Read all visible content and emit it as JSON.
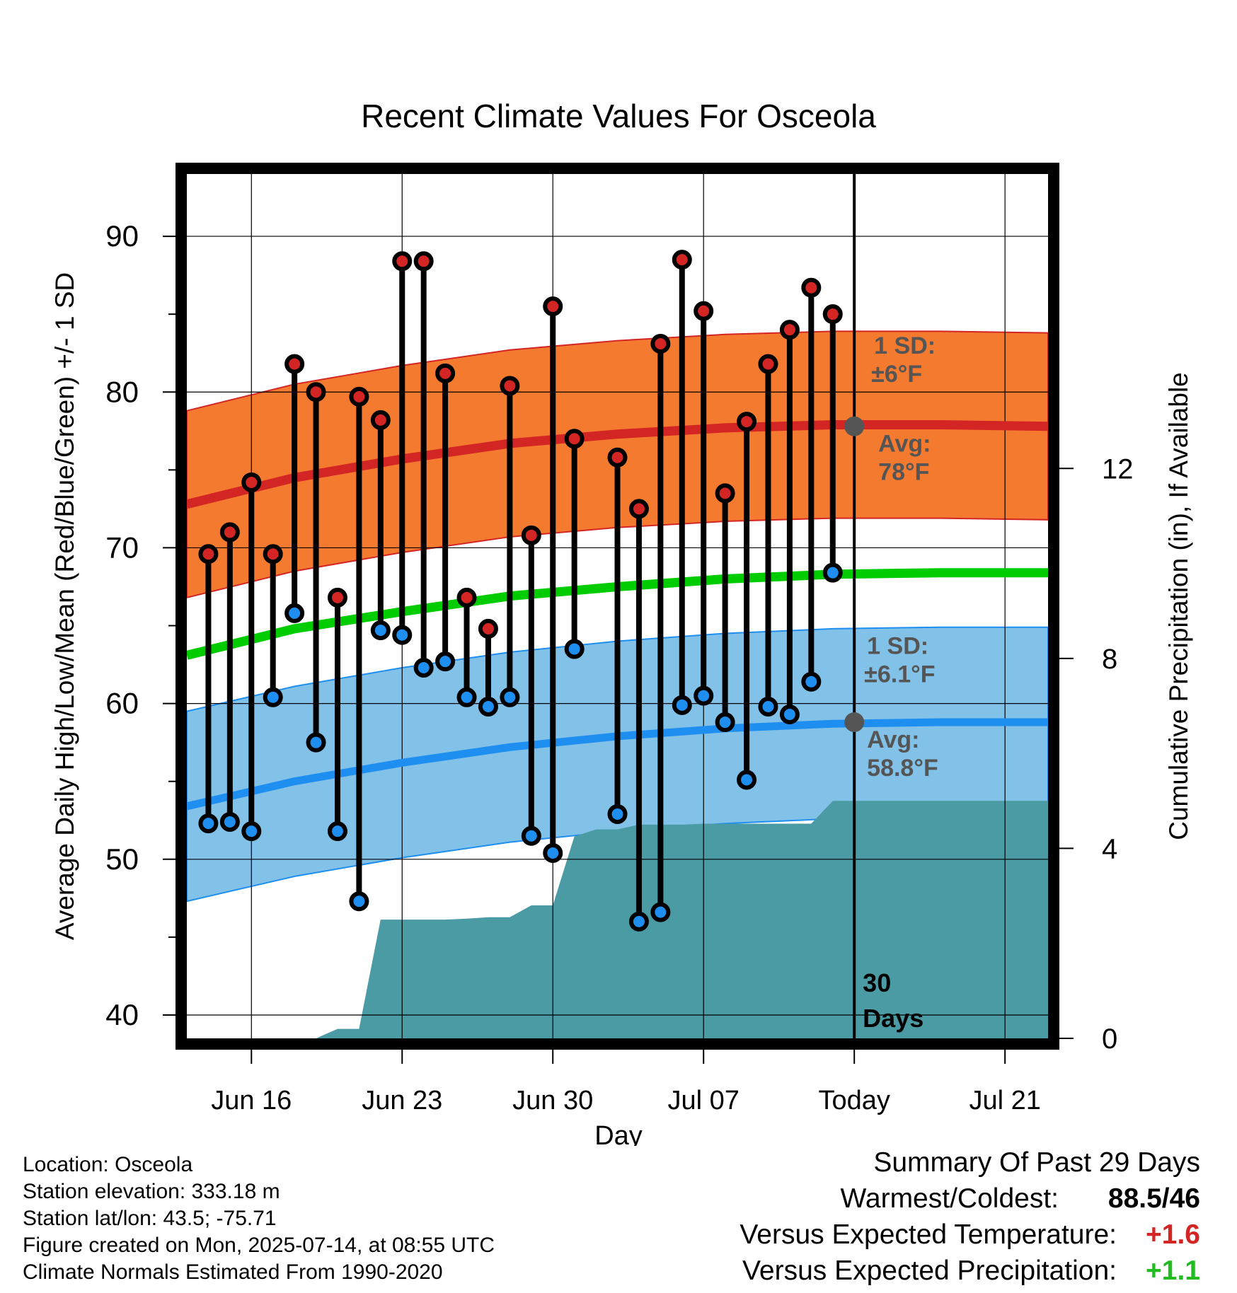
{
  "chart_data": {
    "type": "line",
    "title": "Recent Climate Values For Osceola",
    "xlabel": "Day",
    "ylabel": "Average Daily High/Low/Mean (Red/Blue/Green) +/- 1 SD",
    "y2label": "Cumulative Precipitation (in), If Available",
    "ylim": [
      38.5,
      94
    ],
    "y2lim": [
      0,
      18.2
    ],
    "xlim": [
      "2025-06-13",
      "2025-07-23"
    ],
    "x_ticks": [
      "Jun 16",
      "Jun 23",
      "Jun 30",
      "Jul 07",
      "Today",
      "Jul 21"
    ],
    "x_tick_dates": [
      "2025-06-16",
      "2025-06-23",
      "2025-06-30",
      "2025-07-07",
      "2025-07-14",
      "2025-07-21"
    ],
    "y_ticks": [
      40,
      50,
      60,
      70,
      80,
      90
    ],
    "y2_ticks": [
      0,
      4,
      8,
      12
    ],
    "grid": true,
    "today": "2025-07-14",
    "today_label": "30\nDays",
    "dates": [
      "2025-06-14",
      "2025-06-15",
      "2025-06-16",
      "2025-06-17",
      "2025-06-18",
      "2025-06-19",
      "2025-06-20",
      "2025-06-21",
      "2025-06-22",
      "2025-06-23",
      "2025-06-24",
      "2025-06-25",
      "2025-06-26",
      "2025-06-27",
      "2025-06-28",
      "2025-06-29",
      "2025-06-30",
      "2025-07-01",
      "2025-07-02",
      "2025-07-03",
      "2025-07-04",
      "2025-07-05",
      "2025-07-06",
      "2025-07-07",
      "2025-07-08",
      "2025-07-09",
      "2025-07-10",
      "2025-07-11",
      "2025-07-12",
      "2025-07-13"
    ],
    "highs": [
      69.6,
      71.0,
      74.2,
      69.6,
      81.8,
      80.0,
      66.8,
      79.7,
      78.2,
      88.4,
      88.4,
      81.2,
      66.8,
      64.8,
      80.4,
      70.8,
      85.5,
      77.0,
      null,
      75.8,
      72.5,
      83.1,
      88.5,
      85.2,
      73.5,
      78.1,
      81.8,
      84.0,
      86.7,
      85.0
    ],
    "lows": [
      52.3,
      52.4,
      51.8,
      60.4,
      65.8,
      57.5,
      51.8,
      47.3,
      64.7,
      64.4,
      62.3,
      62.7,
      60.4,
      59.8,
      60.4,
      51.5,
      50.4,
      63.5,
      null,
      52.9,
      46.0,
      46.6,
      59.9,
      60.5,
      58.8,
      55.1,
      59.8,
      59.3,
      61.4,
      68.4
    ],
    "normal_dates": [
      "2025-06-13",
      "2025-06-18",
      "2025-06-23",
      "2025-06-28",
      "2025-07-03",
      "2025-07-08",
      "2025-07-13",
      "2025-07-18",
      "2025-07-23"
    ],
    "normal_high": [
      72.8,
      74.5,
      75.7,
      76.7,
      77.3,
      77.7,
      77.9,
      77.9,
      77.8
    ],
    "normal_low": [
      53.4,
      55.0,
      56.2,
      57.2,
      57.9,
      58.4,
      58.7,
      58.8,
      58.8
    ],
    "normal_mean": [
      63.1,
      64.8,
      65.9,
      66.9,
      67.5,
      68.0,
      68.3,
      68.4,
      68.4
    ],
    "high_sd": 6,
    "low_sd": 6.1,
    "precip_dates": [
      "2025-06-13",
      "2025-06-19",
      "2025-06-20",
      "2025-06-21",
      "2025-06-22",
      "2025-06-23",
      "2025-06-24",
      "2025-06-25",
      "2025-06-26",
      "2025-06-27",
      "2025-06-28",
      "2025-06-29",
      "2025-06-30",
      "2025-07-01",
      "2025-07-02",
      "2025-07-03",
      "2025-07-04",
      "2025-07-05",
      "2025-07-06",
      "2025-07-07",
      "2025-07-08",
      "2025-07-09",
      "2025-07-10",
      "2025-07-11",
      "2025-07-12",
      "2025-07-13",
      "2025-07-23"
    ],
    "precip_cum": [
      0,
      0,
      0.2,
      0.2,
      2.5,
      2.5,
      2.5,
      2.5,
      2.52,
      2.55,
      2.55,
      2.8,
      2.8,
      4.25,
      4.4,
      4.4,
      4.5,
      4.5,
      4.5,
      4.52,
      4.52,
      4.52,
      4.52,
      4.52,
      4.52,
      5.0,
      5.0
    ],
    "annotations": {
      "high_sd_label": "1 SD:",
      "high_sd_value": "±6°F",
      "high_avg_label": "Avg:",
      "high_avg_value": "78°F",
      "low_sd_label": "1 SD:",
      "low_sd_value": "±6.1°F",
      "low_avg_label": "Avg:",
      "low_avg_value": "58.8°F"
    },
    "colors": {
      "high_band": "#f47a2f",
      "high_line": "#d42525",
      "low_band": "#82c1e8",
      "low_line": "#1e8ff0",
      "mean_line": "#00cc00",
      "precip": "#4a9ba4",
      "annotation": "#555555"
    }
  },
  "footer": {
    "location": "Location: Osceola",
    "elevation": "Station elevation: 333.18 m",
    "latlon": "Station lat/lon: 43.5; -75.71",
    "created": "Figure created on Mon, 2025-07-14, at 08:55 UTC",
    "normals": "Climate Normals Estimated From 1990-2020"
  },
  "summary": {
    "title": "Summary Of Past 29 Days",
    "warm_cold_label": "Warmest/Coldest:",
    "warm_value": "88.5",
    "cold_value": "/46",
    "temp_label": "Versus Expected Temperature:",
    "temp_value": "+1.6",
    "temp_color": "#d42525",
    "precip_label": "Versus Expected Precipitation:",
    "precip_value": "+1.1",
    "precip_color": "#22bb22"
  }
}
